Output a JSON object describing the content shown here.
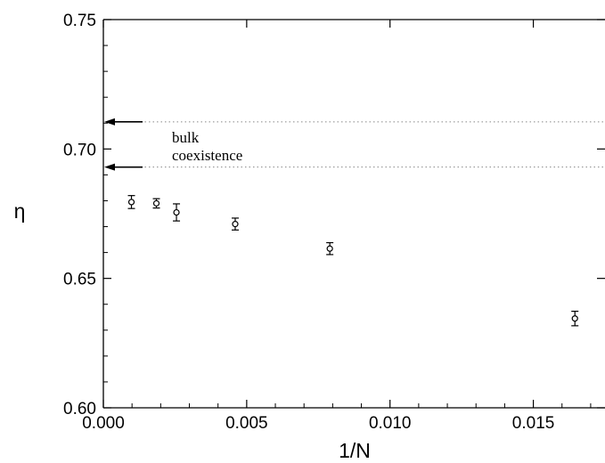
{
  "chart_data": {
    "type": "scatter",
    "title": "",
    "xlabel": "1/N",
    "ylabel": "η",
    "xlim": [
      0.0,
      0.0175
    ],
    "ylim": [
      0.6,
      0.75
    ],
    "x_ticks": [
      0.0,
      0.005,
      0.01,
      0.015
    ],
    "x_tick_labels": [
      "0.000",
      "0.005",
      "0.010",
      "0.015"
    ],
    "y_ticks": [
      0.6,
      0.65,
      0.7,
      0.75
    ],
    "y_tick_labels": [
      "0.60",
      "0.65",
      "0.70",
      "0.75"
    ],
    "grid": false,
    "points": [
      {
        "x": 0.00098,
        "y": 0.6795,
        "err": 0.0025
      },
      {
        "x": 0.00185,
        "y": 0.679,
        "err": 0.0018
      },
      {
        "x": 0.00255,
        "y": 0.6755,
        "err": 0.0033
      },
      {
        "x": 0.0046,
        "y": 0.671,
        "err": 0.0023
      },
      {
        "x": 0.0079,
        "y": 0.6615,
        "err": 0.0023
      },
      {
        "x": 0.01645,
        "y": 0.6345,
        "err": 0.0028
      }
    ],
    "reference_lines": [
      {
        "y": 0.7105,
        "style": "dotted"
      },
      {
        "y": 0.693,
        "style": "dotted"
      }
    ],
    "annotation": {
      "lines": [
        "bulk",
        "coexistence"
      ]
    }
  }
}
